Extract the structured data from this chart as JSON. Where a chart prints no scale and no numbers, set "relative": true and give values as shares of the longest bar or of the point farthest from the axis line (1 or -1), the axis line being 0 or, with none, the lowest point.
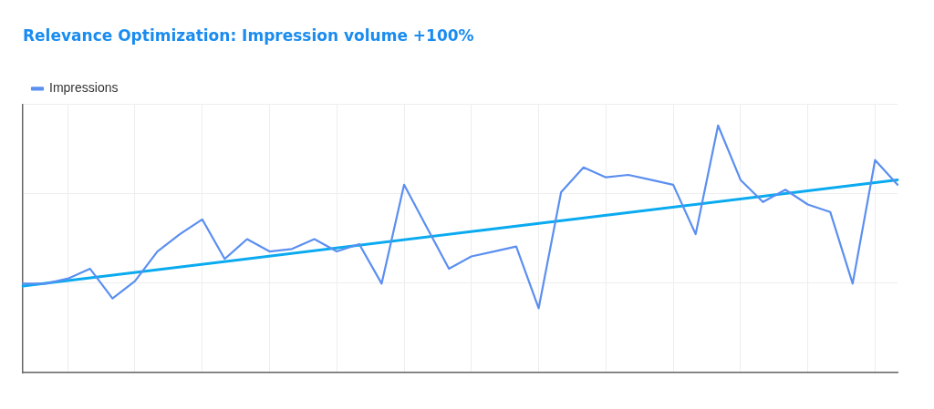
{
  "chart_data": {
    "type": "line",
    "title": "Relevance Optimization: Impression volume +100%",
    "relative": true,
    "grid": true,
    "legend": "top left",
    "marker": "none",
    "line_style": "solid",
    "categories": [
      null,
      null,
      null,
      null,
      null,
      null,
      null,
      null,
      null,
      null,
      null,
      null,
      null,
      null,
      null,
      null,
      null,
      null,
      null,
      null,
      null,
      null,
      null,
      null,
      null,
      null,
      null,
      null,
      null,
      null,
      null,
      null,
      null,
      null,
      null,
      null,
      null,
      null,
      null,
      null
    ],
    "series": [
      {
        "name": "Impressions",
        "color": "#5b8ff0",
        "values": [
          0.36,
          0.36,
          0.38,
          0.42,
          0.3,
          0.37,
          0.49,
          0.56,
          0.62,
          0.46,
          0.54,
          0.49,
          0.5,
          0.54,
          0.49,
          0.52,
          0.36,
          0.76,
          0.59,
          0.42,
          0.47,
          0.49,
          0.51,
          0.26,
          0.73,
          0.83,
          0.79,
          0.8,
          0.78,
          0.76,
          0.56,
          1,
          0.78,
          0.69,
          0.74,
          0.68,
          0.65,
          0.36,
          0.86,
          0.76
        ]
      },
      {
        "type": "line",
        "color": "#0aaaf0",
        "values": [
          0.35,
          null,
          null,
          null,
          null,
          null,
          null,
          null,
          null,
          null,
          null,
          null,
          null,
          null,
          null,
          null,
          null,
          null,
          null,
          null,
          null,
          null,
          null,
          null,
          null,
          null,
          null,
          null,
          null,
          null,
          null,
          null,
          null,
          null,
          null,
          null,
          null,
          null,
          null,
          0.78
        ]
      }
    ]
  }
}
